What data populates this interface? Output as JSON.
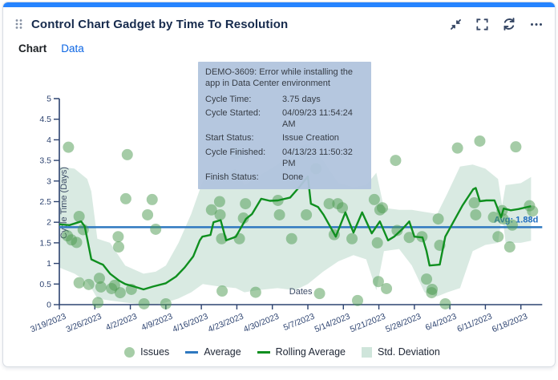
{
  "card": {
    "title": "Control Chart Gadget by Time To Resolution",
    "accent_color": "#2684FF",
    "header_icons": [
      "drag-handle-icon",
      "collapse-icon",
      "fullscreen-icon",
      "refresh-icon",
      "more-icon"
    ],
    "tabs": [
      {
        "label": "Chart",
        "active": true
      },
      {
        "label": "Data",
        "active": false
      }
    ]
  },
  "tooltip": {
    "title": "DEMO-3609: Error while installing the app in Data Center environment",
    "rows": [
      {
        "label": "Cycle Time:",
        "value": "3.75 days"
      },
      {
        "label": "Cycle Started:",
        "value": "04/09/23 11:54:24 AM"
      },
      {
        "label": "Start Status:",
        "value": "Issue Creation"
      },
      {
        "label": "Cycle Finished:",
        "value": "04/13/23 11:50:32 PM"
      },
      {
        "label": "Finish Status:",
        "value": "Done"
      }
    ]
  },
  "chart_data": {
    "type": "line",
    "title": "",
    "xlabel": "Dates",
    "ylabel": "Cycle Time (Days)",
    "ylim": [
      0,
      5
    ],
    "grid": false,
    "legend_position": "bottom",
    "y_tick_labels": [
      "0",
      "0.5",
      "1",
      "1.5",
      "2",
      "2.5",
      "3",
      "3.5",
      "4",
      "4.5",
      "5"
    ],
    "y_tick_values": [
      0,
      0.5,
      1,
      1.5,
      2,
      2.5,
      3,
      3.5,
      4,
      4.5,
      5
    ],
    "x_tick_labels": [
      "3/19/2023",
      "3/26/2023",
      "4/2/2023",
      "4/9/2023",
      "4/16/2023",
      "4/23/2023",
      "4/30/2023",
      "5/7/2023",
      "5/14/2023",
      "5/21/2023",
      "5/28/2023",
      "6/4/2023",
      "6/11/2023",
      "6/18/2023"
    ],
    "x_tick_interval_days": 7,
    "average": 1.88,
    "average_label": "Avg: 1.88d",
    "colors": {
      "issues": "rgba(76,154,79,0.5)",
      "average": "#2e78c0",
      "average_label": "#1e6cc0",
      "rolling": "#0f8f1f",
      "band": "#cfe5db",
      "axis": "#2d4370",
      "axis_text": "#2d4370",
      "axis_title": "#3c4b66"
    },
    "legend": [
      {
        "label": "Issues",
        "marker": "circle"
      },
      {
        "label": "Average",
        "marker": "line-blue"
      },
      {
        "label": "Rolling Average",
        "marker": "line-green"
      },
      {
        "label": "Std. Deviation",
        "marker": "square"
      }
    ],
    "series": [
      {
        "name": "Issues",
        "type": "scatter",
        "points": [
          [
            1.6,
            1.67
          ],
          [
            1.8,
            3.82
          ],
          [
            2.4,
            1.57
          ],
          [
            3.4,
            1.51
          ],
          [
            3.9,
            2.14
          ],
          [
            4.7,
            1.82
          ],
          [
            3.9,
            0.53
          ],
          [
            5.8,
            0.49
          ],
          [
            7.6,
            0.05
          ],
          [
            7.9,
            0.64
          ],
          [
            8.2,
            0.43
          ],
          [
            10.3,
            0.39
          ],
          [
            10.9,
            0.47
          ],
          [
            11.6,
            1.65
          ],
          [
            11.7,
            1.4
          ],
          [
            12.0,
            0.29
          ],
          [
            13.1,
            2.57
          ],
          [
            13.4,
            3.64
          ],
          [
            14.2,
            0.37
          ],
          [
            16.7,
            0.02
          ],
          [
            17.4,
            2.18
          ],
          [
            18.3,
            2.55
          ],
          [
            19.0,
            1.83
          ],
          [
            21.0,
            0.02
          ],
          [
            30.0,
            2.3
          ],
          [
            31.6,
            2.5
          ],
          [
            31.7,
            2.18
          ],
          [
            32.0,
            1.6
          ],
          [
            32.1,
            0.33
          ],
          [
            34.8,
            3.67
          ],
          [
            35.5,
            1.6
          ],
          [
            36.3,
            2.1
          ],
          [
            36.7,
            2.45
          ],
          [
            38.7,
            0.3
          ],
          [
            43.1,
            2.53
          ],
          [
            43.4,
            2.18
          ],
          [
            45.8,
            1.6
          ],
          [
            48.7,
            2.18
          ],
          [
            50.6,
            3.3
          ],
          [
            51.3,
            0.27
          ],
          [
            53.2,
            2.45
          ],
          [
            54.2,
            1.7
          ],
          [
            54.9,
            2.45
          ],
          [
            55.8,
            2.35
          ],
          [
            57.7,
            1.6
          ],
          [
            58.8,
            0.1
          ],
          [
            62.1,
            2.55
          ],
          [
            62.7,
            1.5
          ],
          [
            62.9,
            0.56
          ],
          [
            63.2,
            2.3
          ],
          [
            63.7,
            2.35
          ],
          [
            64.5,
            0.39
          ],
          [
            66.3,
            3.5
          ],
          [
            66.6,
            1.8
          ],
          [
            69.0,
            1.63
          ],
          [
            71.5,
            1.65
          ],
          [
            72.4,
            0.62
          ],
          [
            73.4,
            0.29
          ],
          [
            73.5,
            0.37
          ],
          [
            74.7,
            2.08
          ],
          [
            75.0,
            1.44
          ],
          [
            76.1,
            0.02
          ],
          [
            78.5,
            3.8
          ],
          [
            81.8,
            2.47
          ],
          [
            82.1,
            2.18
          ],
          [
            82.9,
            3.97
          ],
          [
            85.6,
            2.12
          ],
          [
            86.5,
            1.65
          ],
          [
            87.3,
            2.28
          ],
          [
            87.5,
            2.08
          ],
          [
            88.8,
            1.4
          ],
          [
            89.3,
            1.93
          ],
          [
            90.0,
            3.83
          ],
          [
            92.7,
            2.4
          ],
          [
            93.3,
            2.27
          ]
        ]
      },
      {
        "name": "Rolling Average",
        "type": "line",
        "points": [
          [
            0,
            1.95
          ],
          [
            2,
            1.93
          ],
          [
            4.3,
            2.02
          ],
          [
            5,
            1.9
          ],
          [
            5.5,
            1.6
          ],
          [
            6.3,
            1.1
          ],
          [
            8,
            1.0
          ],
          [
            8.6,
            0.97
          ],
          [
            10,
            0.75
          ],
          [
            11.8,
            0.58
          ],
          [
            13,
            0.5
          ],
          [
            15,
            0.43
          ],
          [
            16.6,
            0.37
          ],
          [
            18.5,
            0.44
          ],
          [
            21,
            0.52
          ],
          [
            23,
            0.68
          ],
          [
            24.7,
            0.9
          ],
          [
            26.4,
            1.17
          ],
          [
            27.7,
            1.56
          ],
          [
            28.2,
            1.65
          ],
          [
            29.8,
            1.69
          ],
          [
            30.4,
            2.0
          ],
          [
            31.8,
            2.05
          ],
          [
            32.9,
            1.56
          ],
          [
            34.2,
            1.62
          ],
          [
            34.8,
            1.65
          ],
          [
            36.8,
            2.08
          ],
          [
            38,
            2.2
          ],
          [
            39.8,
            2.57
          ],
          [
            41.5,
            2.52
          ],
          [
            43.1,
            2.53
          ],
          [
            45.5,
            2.6
          ],
          [
            47.3,
            2.85
          ],
          [
            49,
            3.11
          ],
          [
            49.6,
            2.45
          ],
          [
            51,
            2.37
          ],
          [
            52.1,
            2.18
          ],
          [
            53.7,
            1.83
          ],
          [
            54.5,
            1.65
          ],
          [
            56.4,
            2.24
          ],
          [
            58,
            1.75
          ],
          [
            59.7,
            2.24
          ],
          [
            61.6,
            1.73
          ],
          [
            63.2,
            2.02
          ],
          [
            64.8,
            1.56
          ],
          [
            66,
            1.65
          ],
          [
            67.6,
            1.83
          ],
          [
            69,
            2.02
          ],
          [
            70,
            1.65
          ],
          [
            71.6,
            1.63
          ],
          [
            72.4,
            1.3
          ],
          [
            73,
            0.95
          ],
          [
            75,
            0.97
          ],
          [
            76.1,
            1.65
          ],
          [
            76.9,
            1.83
          ],
          [
            79.5,
            2.41
          ],
          [
            81.6,
            2.8
          ],
          [
            82.1,
            2.83
          ],
          [
            82.9,
            2.51
          ],
          [
            84.2,
            2.53
          ],
          [
            85.8,
            2.53
          ],
          [
            87.1,
            2.12
          ],
          [
            87.6,
            2.33
          ],
          [
            89,
            2.29
          ],
          [
            90.5,
            2.32
          ],
          [
            93,
            2.39
          ]
        ]
      },
      {
        "name": "Std. Deviation",
        "type": "band",
        "points": [
          [
            0,
            0.9,
            3.35
          ],
          [
            3,
            0.75,
            3.3
          ],
          [
            5.5,
            0.55,
            3.05
          ],
          [
            6.3,
            0.4,
            2.75
          ],
          [
            7.5,
            0.15,
            1.6
          ],
          [
            10,
            0.1,
            1.5
          ],
          [
            13,
            0.05,
            0.95
          ],
          [
            16.6,
            0.0,
            0.75
          ],
          [
            19,
            0.0,
            0.8
          ],
          [
            21,
            0.05,
            0.95
          ],
          [
            23.5,
            0.15,
            1.5
          ],
          [
            26,
            0.3,
            2.2
          ],
          [
            28.3,
            0.5,
            3.0
          ],
          [
            31,
            0.45,
            3.1
          ],
          [
            34.8,
            0.4,
            3.3
          ],
          [
            36.5,
            0.3,
            2.9
          ],
          [
            39,
            0.35,
            3.1
          ],
          [
            43,
            0.4,
            3.4
          ],
          [
            46.5,
            0.35,
            3.8
          ],
          [
            49,
            0.5,
            3.9
          ],
          [
            52,
            0.8,
            3.5
          ],
          [
            55,
            1.05,
            2.95
          ],
          [
            58,
            1.2,
            2.85
          ],
          [
            60.5,
            1.1,
            2.9
          ],
          [
            62.5,
            0.35,
            3.2
          ],
          [
            64,
            1.3,
            2.35
          ],
          [
            67,
            1.35,
            2.3
          ],
          [
            69.5,
            0.95,
            2.3
          ],
          [
            72,
            0.3,
            2.25
          ],
          [
            74.5,
            0.2,
            2.2
          ],
          [
            76.5,
            0.3,
            2.7
          ],
          [
            79,
            0.4,
            3.35
          ],
          [
            81.5,
            1.3,
            3.4
          ],
          [
            84,
            1.45,
            3.3
          ],
          [
            86.5,
            1.5,
            3.05
          ],
          [
            87.3,
            2.2,
            2.4
          ],
          [
            88,
            1.5,
            2.9
          ],
          [
            91,
            1.5,
            2.95
          ],
          [
            93,
            1.55,
            3.1
          ]
        ]
      }
    ]
  }
}
